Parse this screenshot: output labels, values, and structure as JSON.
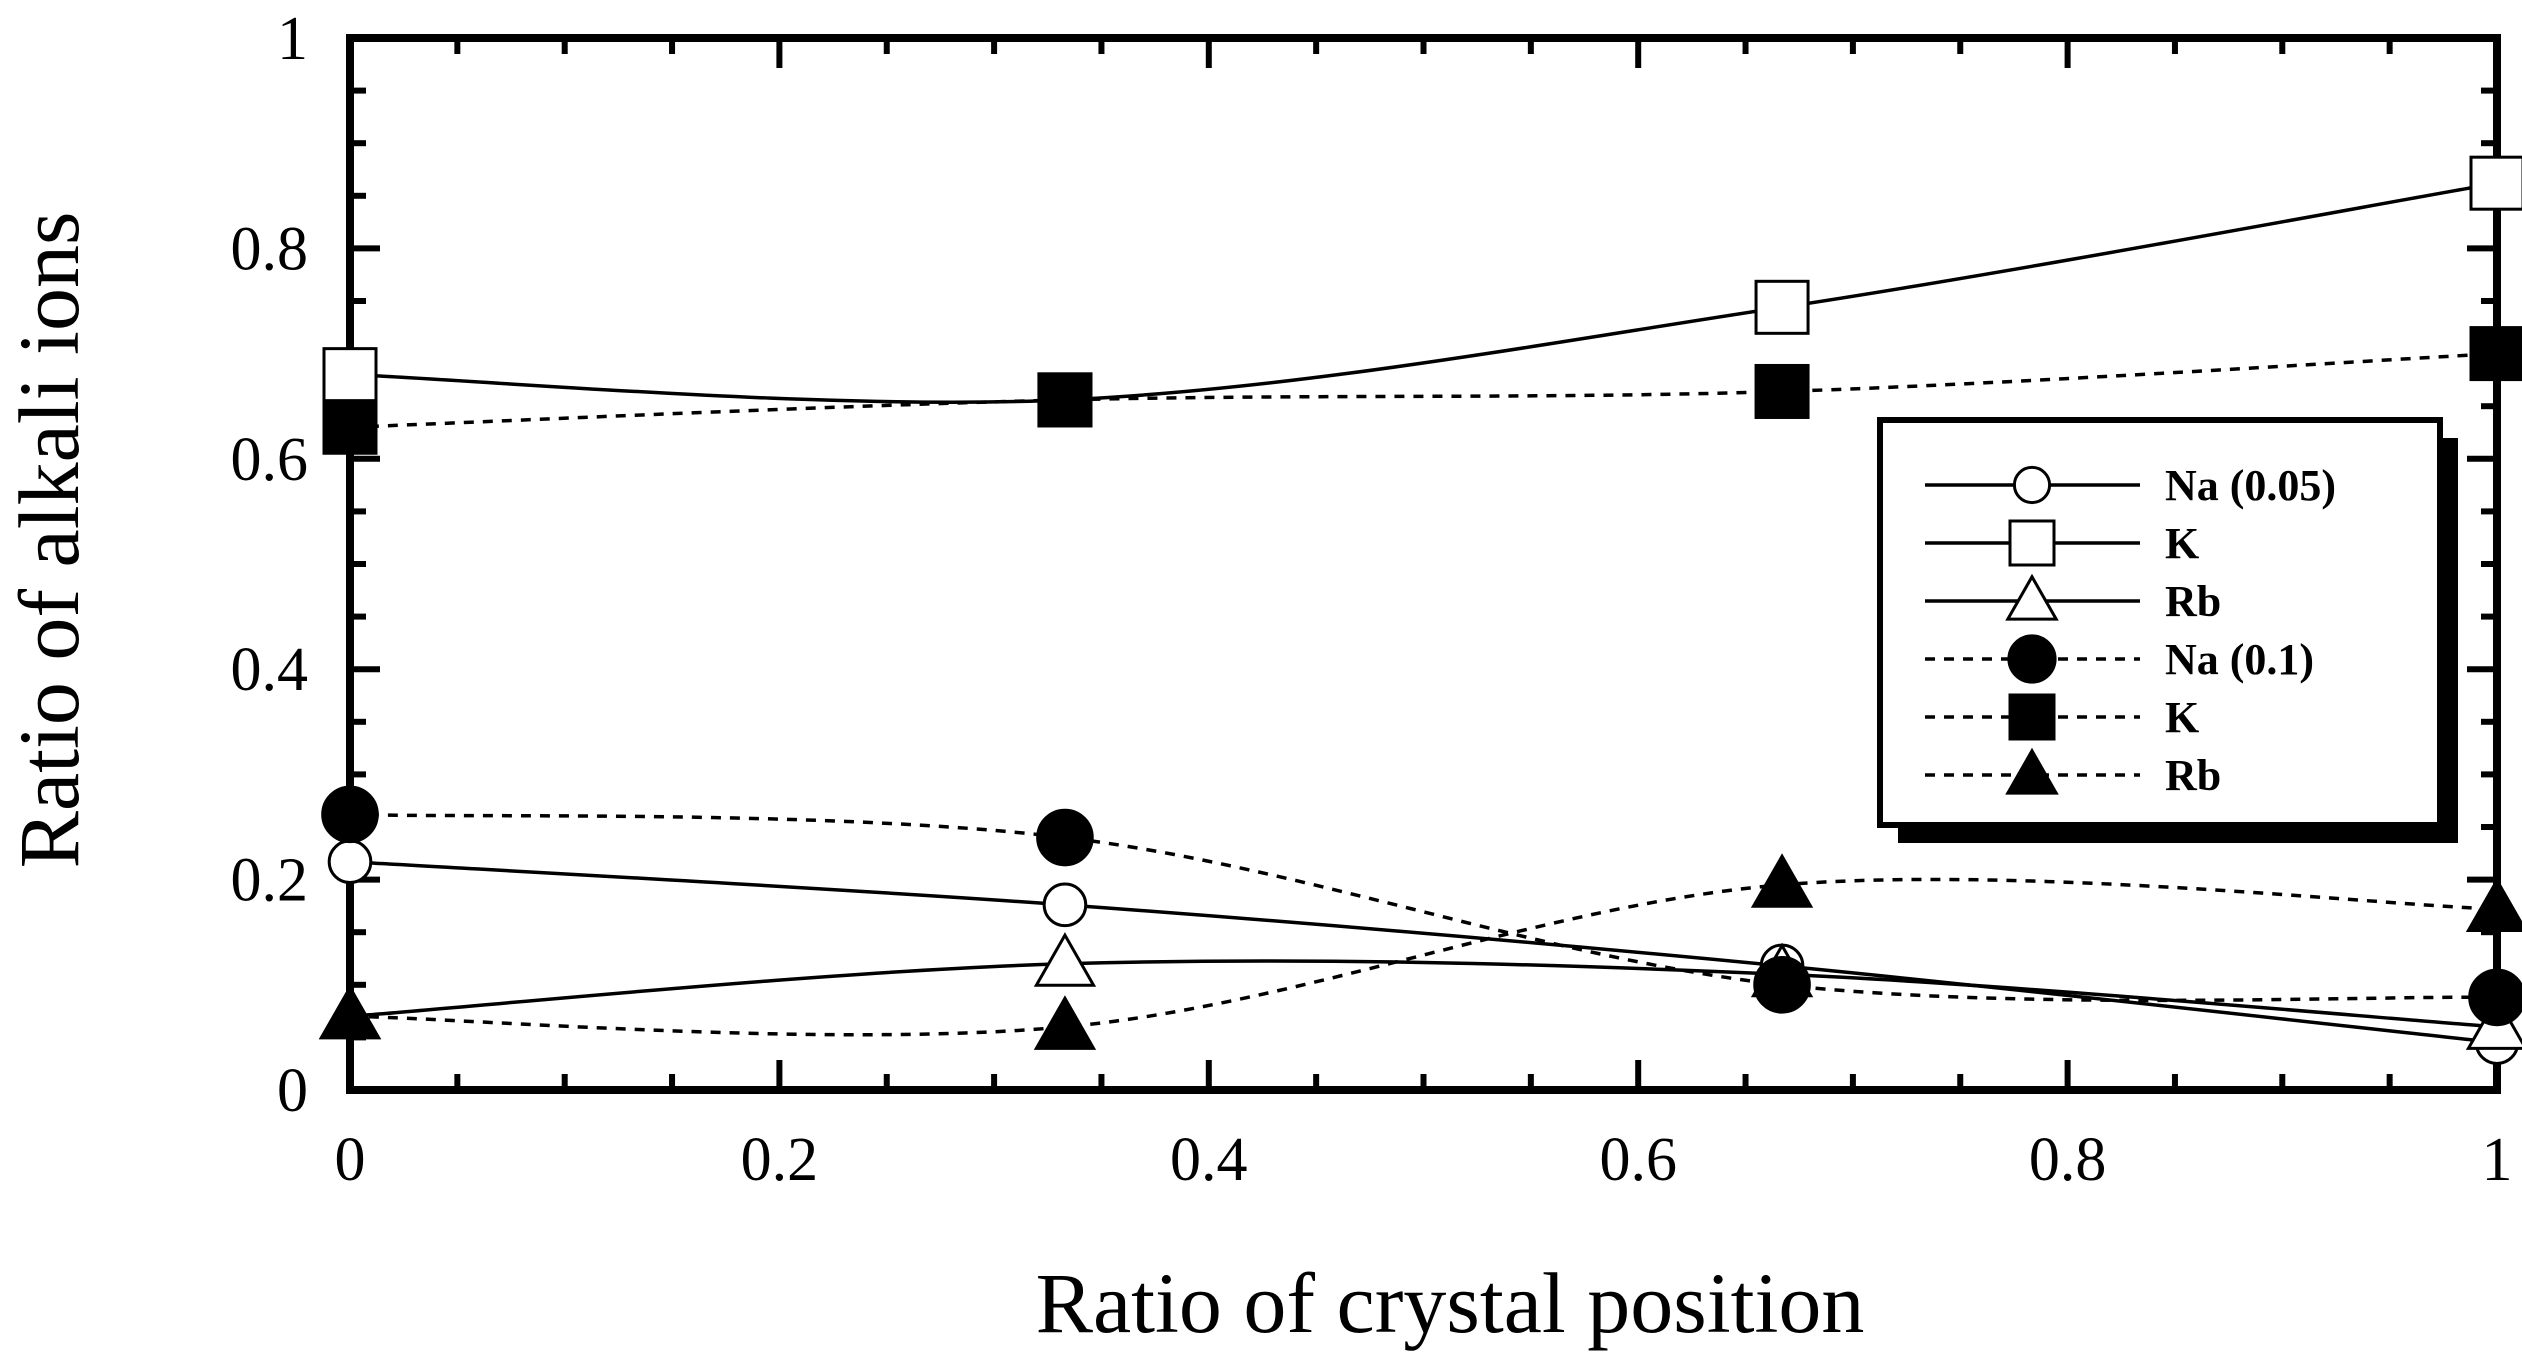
{
  "chart_data": {
    "type": "line",
    "title": "",
    "xlabel": "Ratio of crystal position",
    "ylabel": "Ratio of alkali ions",
    "xlim": [
      0,
      1
    ],
    "ylim": [
      0,
      1
    ],
    "x_ticks": [
      "0",
      "0.2",
      "0.4",
      "0.6",
      "0.8",
      "1"
    ],
    "y_ticks": [
      "0",
      "0.2",
      "0.4",
      "0.6",
      "0.8",
      "1"
    ],
    "grid": false,
    "legend_position": "right",
    "series": [
      {
        "name": "Na (0.05)",
        "marker": "circle",
        "filled": false,
        "dashed": false,
        "x": [
          0,
          0.333,
          0.667,
          1
        ],
        "y": [
          0.217,
          0.176,
          0.118,
          0.045
        ]
      },
      {
        "name": "K",
        "marker": "square",
        "filled": false,
        "dashed": false,
        "x": [
          0,
          0.333,
          0.667,
          1
        ],
        "y": [
          0.68,
          0.656,
          0.744,
          0.862
        ]
      },
      {
        "name": "Rb",
        "marker": "triangle",
        "filled": false,
        "dashed": false,
        "x": [
          0,
          0.333,
          0.667,
          1
        ],
        "y": [
          0.07,
          0.12,
          0.11,
          0.06
        ]
      },
      {
        "name": "Na (0.1)",
        "marker": "circle",
        "filled": true,
        "dashed": true,
        "x": [
          0,
          0.333,
          0.667,
          1
        ],
        "y": [
          0.262,
          0.24,
          0.1,
          0.088
        ]
      },
      {
        "name": "K",
        "marker": "square",
        "filled": true,
        "dashed": true,
        "x": [
          0,
          0.333,
          0.667,
          1
        ],
        "y": [
          0.63,
          0.656,
          0.664,
          0.7
        ]
      },
      {
        "name": "Rb",
        "marker": "triangle",
        "filled": true,
        "dashed": true,
        "x": [
          0,
          0.333,
          0.667,
          1
        ],
        "y": [
          0.07,
          0.06,
          0.195,
          0.172
        ]
      }
    ]
  }
}
